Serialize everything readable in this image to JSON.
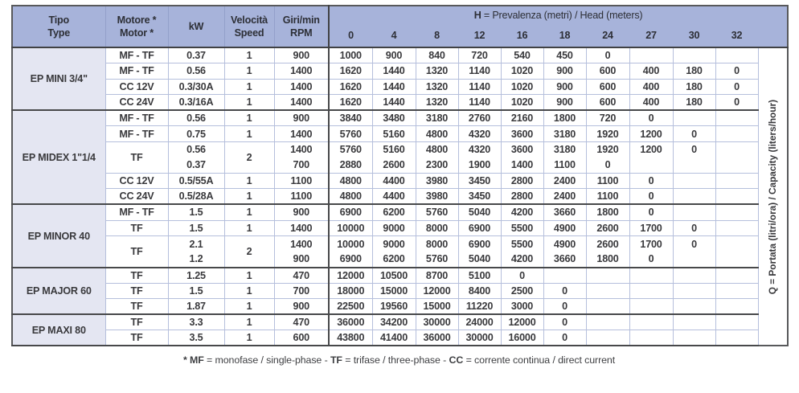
{
  "header": {
    "columns": [
      {
        "line1": "Tipo",
        "line2": "Type"
      },
      {
        "line1": "Motore *",
        "line2": "Motor *"
      },
      {
        "line1": "kW",
        "line2": ""
      },
      {
        "line1": "Velocità",
        "line2": "Speed"
      },
      {
        "line1": "Giri/min",
        "line2": "RPM"
      }
    ],
    "h_title_segments": [
      {
        "text": "H",
        "bold": true
      },
      {
        "text": " = Prevalenza (metri) / Head (meters)",
        "bold": false
      }
    ],
    "h_values": [
      "0",
      "4",
      "8",
      "12",
      "16",
      "18",
      "24",
      "27",
      "30",
      "32"
    ]
  },
  "q_axis_label": "Q = Portata (litri/ora) / Capacity (liters/hour)",
  "groups": [
    {
      "name": "EP MINI 3/4\"",
      "rows": [
        {
          "motor": "MF - TF",
          "kw": "0.37",
          "speed": "1",
          "rpm": "900",
          "values": [
            "1000",
            "900",
            "840",
            "720",
            "540",
            "450",
            "0",
            "",
            "",
            ""
          ]
        },
        {
          "motor": "MF - TF",
          "kw": "0.56",
          "speed": "1",
          "rpm": "1400",
          "values": [
            "1620",
            "1440",
            "1320",
            "1140",
            "1020",
            "900",
            "600",
            "400",
            "180",
            "0"
          ]
        },
        {
          "motor": "CC 12V",
          "kw": "0.3/30A",
          "speed": "1",
          "rpm": "1400",
          "values": [
            "1620",
            "1440",
            "1320",
            "1140",
            "1020",
            "900",
            "600",
            "400",
            "180",
            "0"
          ]
        },
        {
          "motor": "CC 24V",
          "kw": "0.3/16A",
          "speed": "1",
          "rpm": "1400",
          "values": [
            "1620",
            "1440",
            "1320",
            "1140",
            "1020",
            "900",
            "600",
            "400",
            "180",
            "0"
          ]
        }
      ]
    },
    {
      "name": "EP MIDEX 1\"1/4",
      "rows": [
        {
          "motor": "MF - TF",
          "kw": "0.56",
          "speed": "1",
          "rpm": "900",
          "values": [
            "3840",
            "3480",
            "3180",
            "2760",
            "2160",
            "1800",
            "720",
            "0",
            "",
            ""
          ]
        },
        {
          "motor": "MF - TF",
          "kw": "0.75",
          "speed": "1",
          "rpm": "1400",
          "values": [
            "5760",
            "5160",
            "4800",
            "4320",
            "3600",
            "3180",
            "1920",
            "1200",
            "0",
            ""
          ]
        },
        {
          "motor": "TF",
          "motor_rowspan": 2,
          "kw": "0.56",
          "speed": "2",
          "speed_rowspan": 2,
          "rpm": "1400",
          "no_divider_below": true,
          "values": [
            "5760",
            "5160",
            "4800",
            "4320",
            "3600",
            "3180",
            "1920",
            "1200",
            "0",
            ""
          ]
        },
        {
          "motor": null,
          "kw": "0.37",
          "speed": null,
          "rpm": "700",
          "values": [
            "2880",
            "2600",
            "2300",
            "1900",
            "1400",
            "1100",
            "0",
            "",
            "",
            ""
          ]
        },
        {
          "motor": "CC 12V",
          "kw": "0.5/55A",
          "speed": "1",
          "rpm": "1100",
          "values": [
            "4800",
            "4400",
            "3980",
            "3450",
            "2800",
            "2400",
            "1100",
            "0",
            "",
            ""
          ]
        },
        {
          "motor": "CC 24V",
          "kw": "0.5/28A",
          "speed": "1",
          "rpm": "1100",
          "values": [
            "4800",
            "4400",
            "3980",
            "3450",
            "2800",
            "2400",
            "1100",
            "0",
            "",
            ""
          ]
        }
      ]
    },
    {
      "name": "EP MINOR 40",
      "rows": [
        {
          "motor": "MF - TF",
          "kw": "1.5",
          "speed": "1",
          "rpm": "900",
          "values": [
            "6900",
            "6200",
            "5760",
            "5040",
            "4200",
            "3660",
            "1800",
            "0",
            "",
            ""
          ]
        },
        {
          "motor": "TF",
          "kw": "1.5",
          "speed": "1",
          "rpm": "1400",
          "values": [
            "10000",
            "9000",
            "8000",
            "6900",
            "5500",
            "4900",
            "2600",
            "1700",
            "0",
            ""
          ]
        },
        {
          "motor": "TF",
          "motor_rowspan": 2,
          "kw": "2.1",
          "speed": "2",
          "speed_rowspan": 2,
          "rpm": "1400",
          "no_divider_below": true,
          "values": [
            "10000",
            "9000",
            "8000",
            "6900",
            "5500",
            "4900",
            "2600",
            "1700",
            "0",
            ""
          ]
        },
        {
          "motor": null,
          "kw": "1.2",
          "speed": null,
          "rpm": "900",
          "values": [
            "6900",
            "6200",
            "5760",
            "5040",
            "4200",
            "3660",
            "1800",
            "0",
            "",
            ""
          ]
        }
      ]
    },
    {
      "name": "EP MAJOR 60",
      "rows": [
        {
          "motor": "TF",
          "kw": "1.25",
          "speed": "1",
          "rpm": "470",
          "values": [
            "12000",
            "10500",
            "8700",
            "5100",
            "0",
            "",
            "",
            "",
            "",
            ""
          ]
        },
        {
          "motor": "TF",
          "kw": "1.5",
          "speed": "1",
          "rpm": "700",
          "values": [
            "18000",
            "15000",
            "12000",
            "8400",
            "2500",
            "0",
            "",
            "",
            "",
            ""
          ]
        },
        {
          "motor": "TF",
          "kw": "1.87",
          "speed": "1",
          "rpm": "900",
          "values": [
            "22500",
            "19560",
            "15000",
            "11220",
            "3000",
            "0",
            "",
            "",
            "",
            ""
          ]
        }
      ]
    },
    {
      "name": "EP MAXI 80",
      "rows": [
        {
          "motor": "TF",
          "kw": "3.3",
          "speed": "1",
          "rpm": "470",
          "values": [
            "36000",
            "34200",
            "30000",
            "24000",
            "12000",
            "0",
            "",
            "",
            "",
            ""
          ]
        },
        {
          "motor": "TF",
          "kw": "3.5",
          "speed": "1",
          "rpm": "600",
          "values": [
            "43800",
            "41400",
            "36000",
            "30000",
            "16000",
            "0",
            "",
            "",
            "",
            ""
          ]
        }
      ]
    }
  ],
  "footnote_segments": [
    {
      "text": "* MF",
      "bold": true
    },
    {
      "text": " = monofase / single-phase - ",
      "bold": false
    },
    {
      "text": "TF",
      "bold": true
    },
    {
      "text": " = trifase / three-phase - ",
      "bold": false
    },
    {
      "text": "CC",
      "bold": true
    },
    {
      "text": " = corrente continua / direct current",
      "bold": false
    }
  ],
  "colors": {
    "header_bg": "#a7b3da",
    "group_column_bg": "#e4e6f2",
    "grid_light": "#b5bfdc",
    "grid_dark": "#47484a",
    "outer_border": "#58595b",
    "text": "#39393c"
  }
}
